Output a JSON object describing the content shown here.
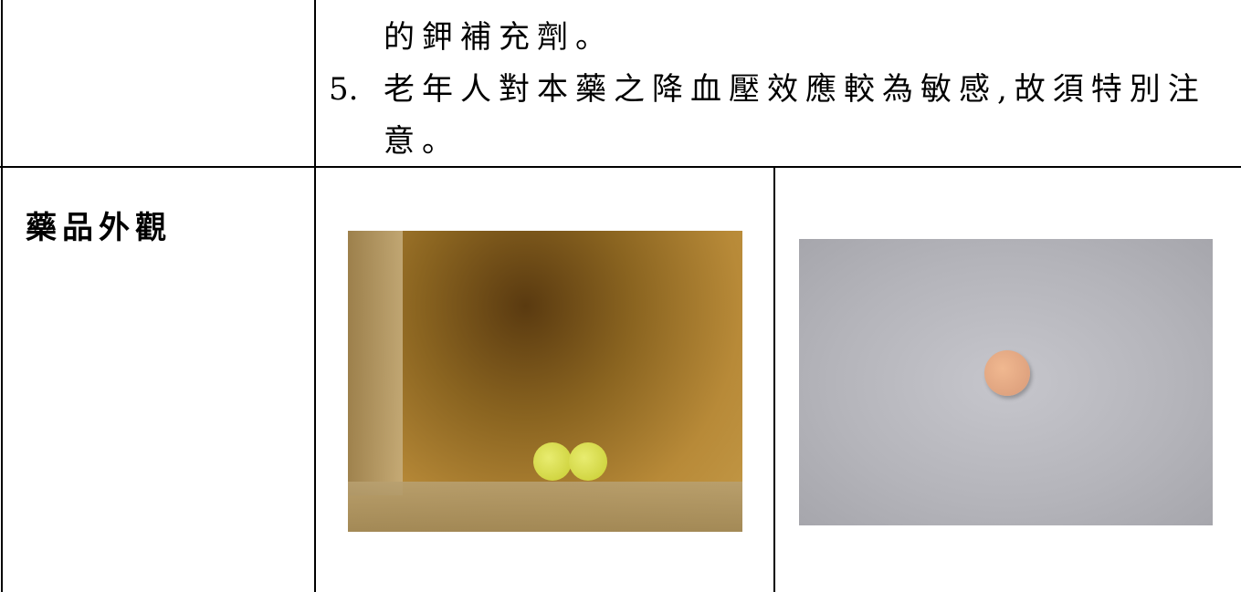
{
  "table": {
    "rows": [
      {
        "continuation": "的鉀補充劑。",
        "item": {
          "number": "5.",
          "text": "老年人對本藥之降血壓效應較為敏感,故須特別注意。"
        }
      },
      {
        "label": "藥品外觀"
      }
    ]
  }
}
